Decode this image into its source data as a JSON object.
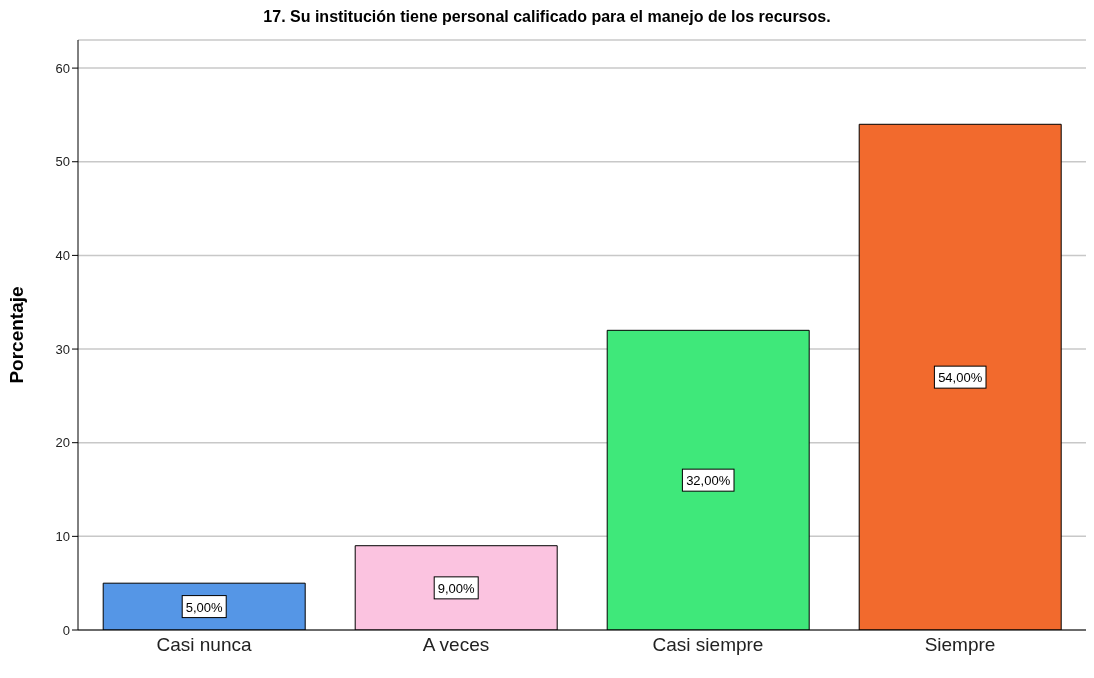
{
  "chart_data": {
    "type": "bar",
    "title": "17. Su institución tiene personal calificado para el manejo de los recursos.",
    "ylabel": "Porcentaje",
    "categories": [
      "Casi nunca",
      "A veces",
      "Casi siempre",
      "Siempre"
    ],
    "values": [
      5,
      9,
      32,
      54
    ],
    "value_labels": [
      "5,00%",
      "9,00%",
      "32,00%",
      "54,00%"
    ],
    "colors": [
      "#5596e6",
      "#fbc3e0",
      "#3fe87a",
      "#f26a2d"
    ],
    "ylim": [
      0,
      63
    ],
    "yticks": [
      0,
      10,
      20,
      30,
      40,
      50,
      60
    ],
    "grid": "y"
  }
}
